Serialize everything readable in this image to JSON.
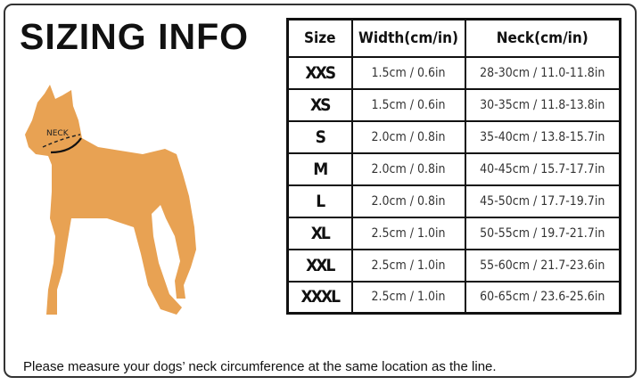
{
  "title": "SIZING INFO",
  "neck_label": "NECK",
  "colors": {
    "dog": "#E8A253",
    "border": "#111111"
  },
  "table": {
    "headers": [
      "Size",
      "Width(cm/in)",
      "Neck(cm/in)"
    ],
    "rows": [
      {
        "size": "XXS",
        "width": "1.5cm / 0.6in",
        "neck": "28-30cm / 11.0-11.8in"
      },
      {
        "size": "XS",
        "width": "1.5cm / 0.6in",
        "neck": "30-35cm / 11.8-13.8in"
      },
      {
        "size": "S",
        "width": "2.0cm / 0.8in",
        "neck": "35-40cm / 13.8-15.7in"
      },
      {
        "size": "M",
        "width": "2.0cm / 0.8in",
        "neck": "40-45cm / 15.7-17.7in"
      },
      {
        "size": "L",
        "width": "2.0cm / 0.8in",
        "neck": "45-50cm / 17.7-19.7in"
      },
      {
        "size": "XL",
        "width": "2.5cm / 1.0in",
        "neck": "50-55cm / 19.7-21.7in"
      },
      {
        "size": "XXL",
        "width": "2.5cm / 1.0in",
        "neck": "55-60cm / 21.7-23.6in"
      },
      {
        "size": "XXXL",
        "width": "2.5cm / 1.0in",
        "neck": "60-65cm / 23.6-25.6in"
      }
    ]
  },
  "note": "Please measure your dogs’  neck circumference at the same location as the line."
}
